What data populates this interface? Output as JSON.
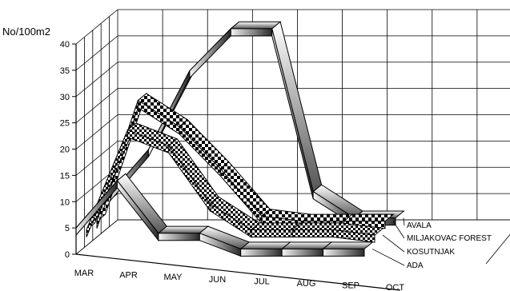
{
  "chart_data": {
    "type": "line",
    "style": "3d-ribbon",
    "title": "",
    "xlabel": "",
    "ylabel": "No/100m2",
    "ylim": [
      0,
      40
    ],
    "yticks": [
      0,
      5,
      10,
      15,
      20,
      25,
      30,
      35,
      40
    ],
    "grid": true,
    "legend": "series labels at right end of ribbons",
    "categories": [
      "MAR",
      "APR",
      "MAY",
      "JUN",
      "JUL",
      "AUG",
      "SEP",
      "OCT"
    ],
    "series": [
      {
        "name": "AVALA",
        "values": [
          6,
          15,
          30,
          38,
          38,
          7,
          2,
          2
        ]
      },
      {
        "name": "MILJAKOVAC FOREST",
        "values": [
          3,
          26,
          21,
          13,
          4,
          3,
          3,
          3
        ]
      },
      {
        "name": "KOSUTNJAK",
        "values": [
          3,
          22,
          19,
          8,
          3,
          3,
          3,
          2
        ]
      },
      {
        "name": "ADA",
        "values": [
          5,
          14,
          4,
          4,
          1,
          1,
          1,
          1
        ]
      }
    ]
  },
  "colors": {
    "grid": "#000000",
    "ribbon_dark": "#2a2a2a",
    "ribbon_light": "#e8e8e8"
  }
}
